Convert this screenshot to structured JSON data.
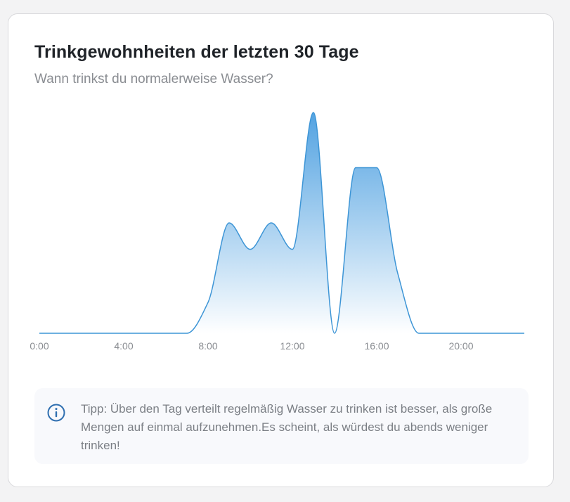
{
  "card": {
    "title": "Trinkgewohnheiten der letzten 30 Tage",
    "subtitle": "Wann trinkst du normalerweise Wasser?"
  },
  "chart_data": {
    "type": "area",
    "title": "Trinkgewohnheiten der letzten 30 Tage",
    "subtitle": "Wann trinkst du normalerweise Wasser?",
    "xlabel": "",
    "ylabel": "",
    "x_unit": "hour",
    "xlim": [
      0,
      23
    ],
    "ylim": [
      0,
      1
    ],
    "x_ticks": [
      0,
      4,
      8,
      12,
      16,
      20
    ],
    "x_tick_labels": [
      "0:00",
      "4:00",
      "8:00",
      "12:00",
      "16:00",
      "20:00"
    ],
    "grid": false,
    "legend": "none",
    "series": [
      {
        "x": [
          0,
          1,
          2,
          3,
          4,
          5,
          6,
          7,
          8,
          9,
          10,
          11,
          12,
          13,
          14,
          15,
          16,
          17,
          18,
          19,
          20,
          21,
          22,
          23
        ],
        "values": [
          0,
          0,
          0,
          0,
          0,
          0,
          0,
          0,
          0.14,
          0.5,
          0.38,
          0.5,
          0.38,
          1.0,
          0.0,
          0.75,
          0.75,
          0.27,
          0,
          0,
          0,
          0,
          0,
          0
        ]
      }
    ],
    "colors": {
      "line": "#3d95d6",
      "fill_top": "#4a9ee0",
      "fill_bottom": "#ffffff"
    }
  },
  "tip": {
    "icon": "info-icon",
    "text": "Tipp: Über den Tag verteilt regelmäßig Wasser zu trinken ist besser, als große Mengen auf einmal aufzunehmen.Es scheint, als würdest du abends weniger trinken!"
  }
}
